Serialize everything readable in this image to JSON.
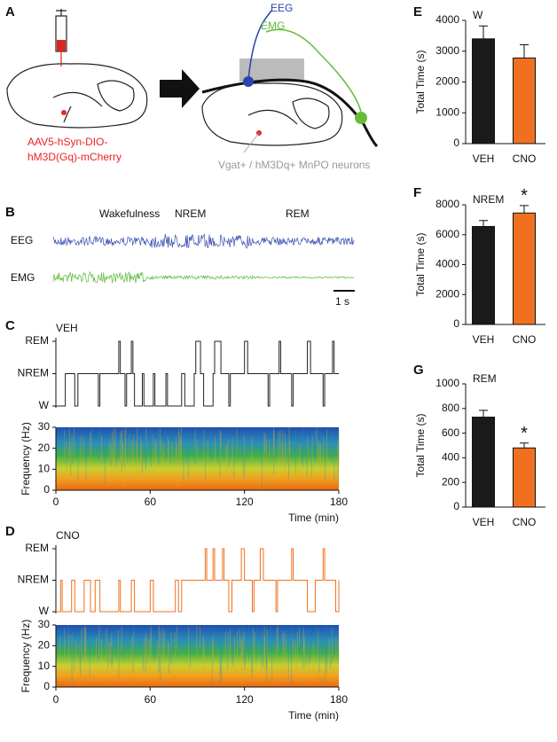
{
  "figure": {
    "panels": [
      "A",
      "B",
      "C",
      "D",
      "E",
      "F",
      "G"
    ],
    "virus": [
      "AAV5-hSyn-DIO-",
      "hM3D(Gq)-mCherry"
    ],
    "eeg": "EEG",
    "emg": "EMG",
    "neurons": "Vgat+ / hM3Dq+ MnPO neurons",
    "states": [
      "Wakefulness",
      "NREM",
      "REM"
    ],
    "traces": [
      "EEG",
      "EMG"
    ],
    "scale": "1 s"
  },
  "chart_data": [
    {
      "type": "step",
      "label": "VEH",
      "color": "#222222",
      "xlim": [
        0,
        180
      ],
      "ylim": [
        0,
        2
      ],
      "yticks": [
        {
          "value": 0,
          "label": "W"
        },
        {
          "value": 1,
          "label": "NREM"
        },
        {
          "value": 2,
          "label": "REM"
        }
      ],
      "x": [
        0,
        6,
        12,
        14,
        27,
        28,
        40,
        41,
        44,
        45,
        48,
        49,
        50,
        55,
        56,
        62,
        63,
        70,
        71,
        80,
        82,
        88,
        89,
        92,
        94,
        100,
        101,
        105,
        110,
        111,
        120,
        122,
        135,
        136,
        142,
        143,
        150,
        151,
        160,
        162,
        170,
        171,
        176,
        177,
        180
      ],
      "values": [
        0,
        1,
        0,
        1,
        0,
        1,
        2,
        1,
        0,
        1,
        2,
        1,
        0,
        1,
        0,
        1,
        0,
        1,
        0,
        1,
        0,
        1,
        2,
        1,
        0,
        1,
        2,
        1,
        0,
        1,
        2,
        1,
        0,
        1,
        2,
        1,
        0,
        1,
        2,
        1,
        0,
        1,
        2,
        1,
        1
      ]
    },
    {
      "type": "spectrogram",
      "xlim": [
        0,
        180
      ],
      "xticks": [
        0,
        60,
        120,
        180
      ],
      "ylim": [
        0,
        30
      ],
      "yticks": [
        0,
        10,
        20,
        30
      ],
      "xlabel": "Time (min)",
      "ylabel": "Frequency (Hz)"
    },
    {
      "type": "step",
      "label": "CNO",
      "color": "#f07020",
      "xlim": [
        0,
        180
      ],
      "ylim": [
        0,
        2
      ],
      "yticks": [
        {
          "value": 0,
          "label": "W"
        },
        {
          "value": 1,
          "label": "NREM"
        },
        {
          "value": 2,
          "label": "REM"
        }
      ],
      "x": [
        0,
        3,
        4,
        10,
        12,
        18,
        22,
        25,
        28,
        40,
        41,
        48,
        50,
        60,
        62,
        76,
        78,
        80,
        95,
        96,
        100,
        101,
        106,
        107,
        110,
        112,
        118,
        120,
        125,
        126,
        130,
        132,
        140,
        141,
        150,
        151,
        160,
        165,
        170,
        171,
        178,
        180
      ],
      "values": [
        0,
        1,
        0,
        1,
        0,
        1,
        0,
        1,
        0,
        1,
        0,
        1,
        0,
        1,
        0,
        1,
        0,
        1,
        2,
        1,
        2,
        1,
        2,
        1,
        0,
        1,
        2,
        1,
        0,
        1,
        2,
        1,
        0,
        1,
        2,
        1,
        0,
        1,
        2,
        1,
        0,
        1
      ]
    },
    {
      "type": "spectrogram",
      "xlim": [
        0,
        180
      ],
      "xticks": [
        0,
        60,
        120,
        180
      ],
      "ylim": [
        0,
        30
      ],
      "yticks": [
        0,
        10,
        20,
        30
      ],
      "xlabel": "Time (min)",
      "ylabel": "Frequency (Hz)"
    },
    {
      "type": "bar",
      "title": "W",
      "ylabel": "Total Time (s)",
      "categories": [
        "VEH",
        "CNO"
      ],
      "values": [
        3400,
        2780
      ],
      "errors": [
        420,
        430
      ],
      "colors": [
        "#1a1a1a",
        "#f07020"
      ],
      "ylim": [
        0,
        4000
      ],
      "yticks": [
        0,
        1000,
        2000,
        3000,
        4000
      ]
    },
    {
      "type": "bar",
      "title": "NREM",
      "ylabel": "Total Time (s)",
      "categories": [
        "VEH",
        "CNO"
      ],
      "values": [
        6550,
        7450
      ],
      "errors": [
        400,
        500
      ],
      "colors": [
        "#1a1a1a",
        "#f07020"
      ],
      "ylim": [
        0,
        8000
      ],
      "yticks": [
        0,
        2000,
        4000,
        6000,
        8000
      ],
      "annotation": "*"
    },
    {
      "type": "bar",
      "title": "REM",
      "ylabel": "Total Time (s)",
      "categories": [
        "VEH",
        "CNO"
      ],
      "values": [
        730,
        480
      ],
      "errors": [
        55,
        40
      ],
      "colors": [
        "#1a1a1a",
        "#f07020"
      ],
      "ylim": [
        0,
        1000
      ],
      "yticks": [
        0,
        200,
        400,
        600,
        800,
        1000
      ],
      "annotation": "*"
    }
  ]
}
